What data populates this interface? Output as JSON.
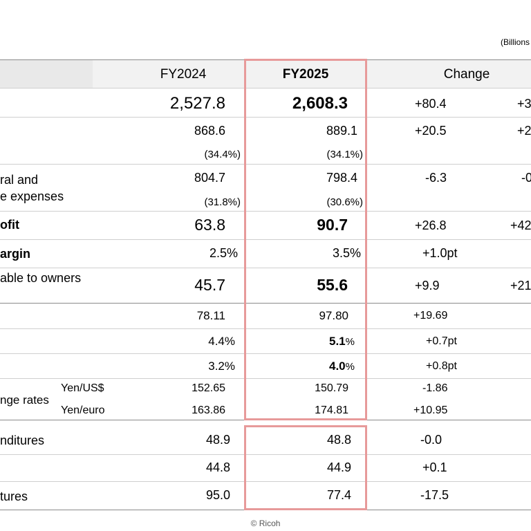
{
  "units": "(Billions",
  "headers": {
    "fy2024": "FY2024",
    "fy2025": "FY2025",
    "change": "Change"
  },
  "rows": [
    {
      "label": "",
      "fy2024": "2,527.8",
      "fy2025": "2,608.3",
      "change": "+80.4",
      "pct": "+3"
    },
    {
      "label": "",
      "fy2024": "868.6",
      "fy2024_sub": "(34.4%)",
      "fy2025": "889.1",
      "fy2025_sub": "(34.1%)",
      "change": "+20.5",
      "pct": "+2"
    },
    {
      "label_line1": "ral and",
      "label_line2": "e expenses",
      "fy2024": "804.7",
      "fy2024_sub": "(31.8%)",
      "fy2025": "798.4",
      "fy2025_sub": "(30.6%)",
      "change": "-6.3",
      "pct": "-0"
    },
    {
      "label": "ofit",
      "fy2024": "63.8",
      "fy2025": "90.7",
      "change": "+26.8",
      "pct": "+42"
    },
    {
      "label": "argin",
      "fy2024": "2.5%",
      "fy2025": "3.5%",
      "change": "+1.0pt",
      "pct": ""
    },
    {
      "label": "able to owners",
      "fy2024": "45.7",
      "fy2025": "55.6",
      "change": "+9.9",
      "pct": "+21"
    },
    {
      "label": "",
      "fy2024": "78.11",
      "fy2025": "97.80",
      "change": "+19.69"
    },
    {
      "label": "",
      "fy2024": "4.4%",
      "fy2025_num": "5.1",
      "fy2025_pct": "%",
      "change": "+0.7pt"
    },
    {
      "label": "",
      "fy2024": "3.2%",
      "fy2025_num": "4.0",
      "fy2025_pct": "%",
      "change": "+0.8pt"
    },
    {
      "label": "nge rates",
      "sub1": "Yen/US$",
      "sub2": "Yen/euro",
      "fy2024_1": "152.65",
      "fy2025_1": "150.79",
      "change_1": "-1.86",
      "fy2024_2": "163.86",
      "fy2025_2": "174.81",
      "change_2": "+10.95"
    },
    {
      "label": "nditures",
      "fy2024": "48.9",
      "fy2025": "48.8",
      "change": "-0.0"
    },
    {
      "label": "",
      "fy2024": "44.8",
      "fy2025": "44.9",
      "change": "+0.1"
    },
    {
      "label": "tures",
      "fy2024": "95.0",
      "fy2025": "77.4",
      "change": "-17.5"
    }
  ],
  "footer": "© Ricoh",
  "colors": {
    "highlight": "#e79a9a",
    "header_band": "#f2f2f2"
  }
}
